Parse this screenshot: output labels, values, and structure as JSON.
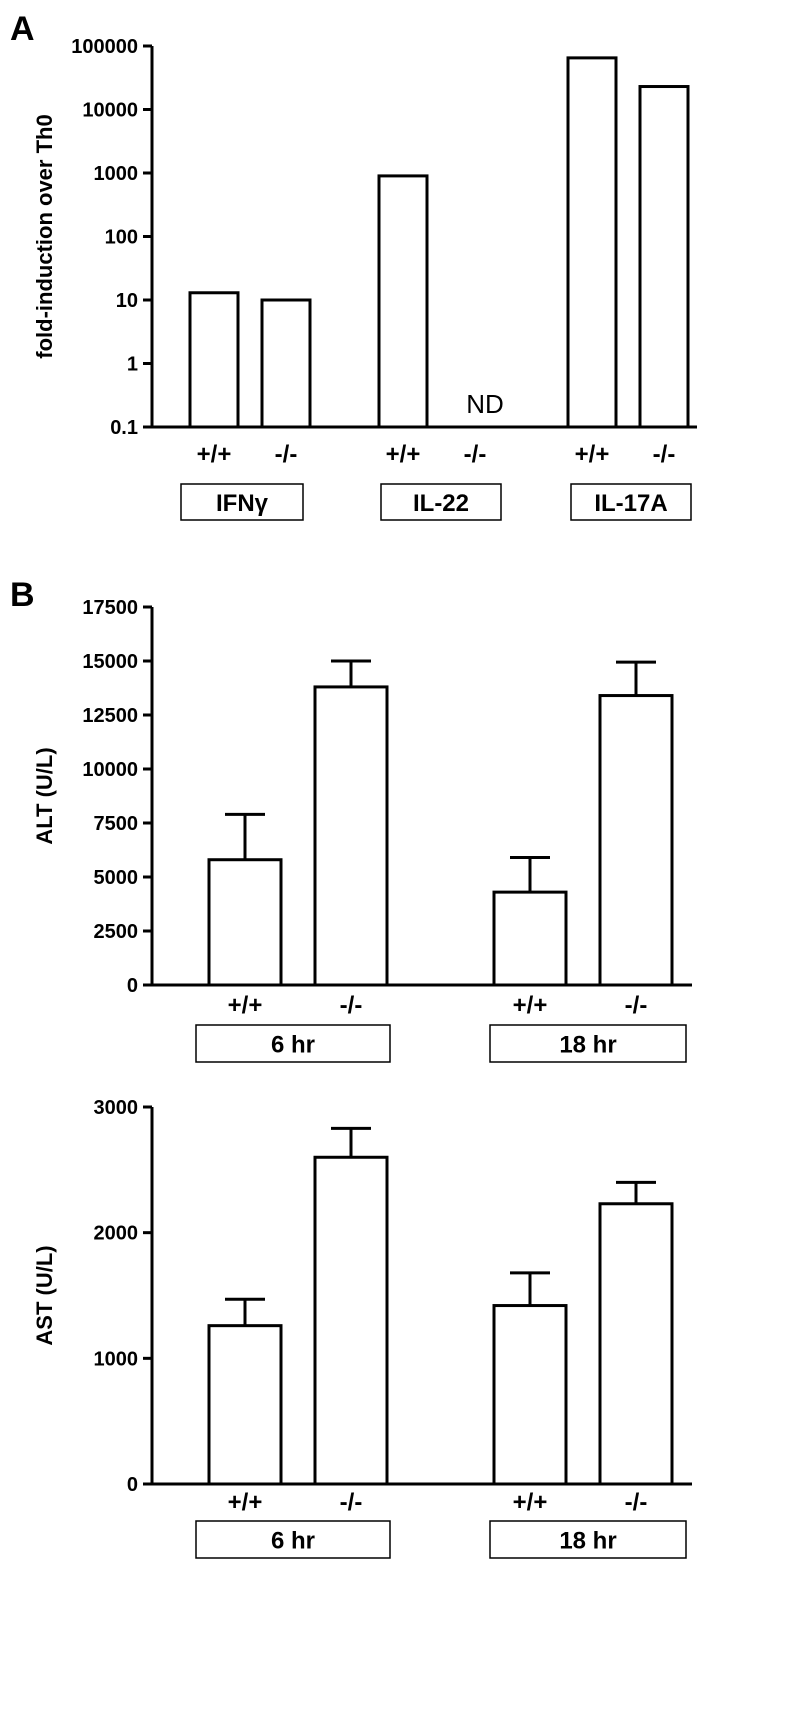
{
  "chart_data": [
    {
      "panel": "A",
      "type": "bar",
      "yscale": "log",
      "ylabel": "fold-induction over Th0",
      "ylim": [
        0.1,
        100000
      ],
      "yticks": [
        "100000",
        "10000",
        "1000",
        "100",
        "10",
        "1",
        "0.1"
      ],
      "groups": [
        "IFNγ",
        "IL-22",
        "IL-17A"
      ],
      "genotypes": [
        "+/+",
        "-/-"
      ],
      "values": [
        [
          13,
          10
        ],
        [
          900,
          null
        ],
        [
          65000,
          23000
        ]
      ],
      "annotations": [
        {
          "group": 1,
          "genotype": 1,
          "text": "ND"
        }
      ]
    },
    {
      "panel": "B",
      "type": "bar",
      "yscale": "linear",
      "ylabel": "ALT (U/L)",
      "ylim": [
        0,
        17500
      ],
      "yticks": [
        "17500",
        "15000",
        "12500",
        "10000",
        "7500",
        "5000",
        "2500",
        "0"
      ],
      "groups": [
        "6 hr",
        "18 hr"
      ],
      "genotypes": [
        "+/+",
        "-/-"
      ],
      "values": [
        [
          5800,
          13800
        ],
        [
          4300,
          13400
        ]
      ],
      "errors": [
        [
          2100,
          1200
        ],
        [
          1600,
          1550
        ]
      ]
    },
    {
      "panel": "",
      "type": "bar",
      "yscale": "linear",
      "ylabel": "AST (U/L)",
      "ylim": [
        0,
        3000
      ],
      "yticks": [
        "3000",
        "2000",
        "1000",
        "0"
      ],
      "groups": [
        "6 hr",
        "18 hr"
      ],
      "genotypes": [
        "+/+",
        "-/-"
      ],
      "values": [
        [
          1260,
          2600
        ],
        [
          1420,
          2230
        ]
      ],
      "errors": [
        [
          210,
          230
        ],
        [
          260,
          170
        ]
      ]
    }
  ]
}
